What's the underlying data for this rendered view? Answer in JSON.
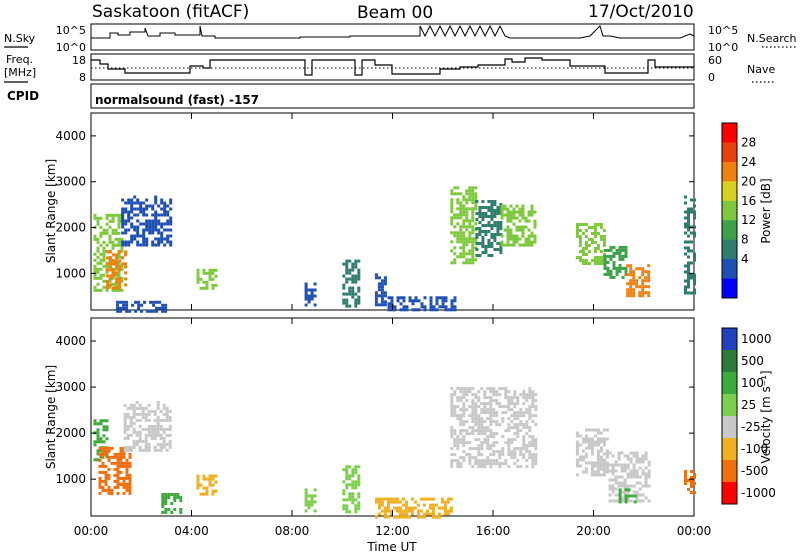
{
  "header": {
    "station": "Saskatoon (fitACF)",
    "beam": "Beam 00",
    "date": "17/Oct/2010"
  },
  "strip_nsky": {
    "left_label": "N.Sky",
    "right_label": "N.Search",
    "ticks_left": [
      "10^5",
      "10^0"
    ],
    "ticks_right": [
      "10^5",
      "10^0"
    ]
  },
  "strip_freq": {
    "left_label_1": "Freq.",
    "left_label_2": "[MHz]",
    "right_label": "Nave",
    "ticks_left": [
      "18",
      "8"
    ],
    "ticks_right": [
      "60",
      "0"
    ]
  },
  "strip_cpid": {
    "left_label": "CPID",
    "text": "normalsound (fast) -157"
  },
  "chart_data": [
    {
      "type": "heatmap",
      "panel": "power",
      "ylabel": "Slant Range [km]",
      "xlabel": "",
      "ylim": [
        200,
        4500
      ],
      "yticks": [
        "1000",
        "2000",
        "3000",
        "4000"
      ],
      "colorbar_label": "Power [dB]",
      "colorbar_ticks": [
        "28",
        "24",
        "20",
        "16",
        "12",
        "8",
        "4"
      ],
      "colorscale": [
        "#0000ff",
        "#1f4fb4",
        "#2e7d6e",
        "#3fa04a",
        "#7ec83c",
        "#d8d020",
        "#f08010",
        "#e84010",
        "#ff0000"
      ],
      "patches": [
        {
          "x": [
            0.1,
            1.2
          ],
          "y": [
            600,
            2300
          ],
          "value": 14
        },
        {
          "x": [
            0.6,
            1.4
          ],
          "y": [
            700,
            1500
          ],
          "value": 22
        },
        {
          "x": [
            1.2,
            3.2
          ],
          "y": [
            1600,
            2700
          ],
          "value": 6
        },
        {
          "x": [
            1.0,
            3.0
          ],
          "y": [
            200,
            400
          ],
          "value": 6
        },
        {
          "x": [
            4.2,
            5.0
          ],
          "y": [
            700,
            1100
          ],
          "value": 14
        },
        {
          "x": [
            8.5,
            8.9
          ],
          "y": [
            300,
            800
          ],
          "value": 6
        },
        {
          "x": [
            10.0,
            10.6
          ],
          "y": [
            300,
            1300
          ],
          "value": 8
        },
        {
          "x": [
            11.3,
            11.7
          ],
          "y": [
            300,
            1000
          ],
          "value": 6
        },
        {
          "x": [
            11.8,
            14.5
          ],
          "y": [
            200,
            500
          ],
          "value": 4
        },
        {
          "x": [
            14.3,
            15.3
          ],
          "y": [
            1200,
            2900
          ],
          "value": 16
        },
        {
          "x": [
            15.3,
            16.3
          ],
          "y": [
            1400,
            2600
          ],
          "value": 10
        },
        {
          "x": [
            16.3,
            17.7
          ],
          "y": [
            1600,
            2500
          ],
          "value": 16
        },
        {
          "x": [
            19.3,
            20.4
          ],
          "y": [
            1200,
            2100
          ],
          "value": 14
        },
        {
          "x": [
            20.4,
            21.3
          ],
          "y": [
            900,
            1600
          ],
          "value": 12
        },
        {
          "x": [
            21.3,
            22.2
          ],
          "y": [
            500,
            1200
          ],
          "value": 24
        },
        {
          "x": [
            23.6,
            24.0
          ],
          "y": [
            600,
            2700
          ],
          "value": 8
        }
      ]
    },
    {
      "type": "heatmap",
      "panel": "velocity",
      "ylabel": "Slant Range [km]",
      "xlabel": "Time UT",
      "xlim": [
        0,
        24
      ],
      "xticks": [
        "00:00",
        "04:00",
        "08:00",
        "12:00",
        "16:00",
        "20:00",
        "00:00"
      ],
      "ylim": [
        200,
        4500
      ],
      "yticks": [
        "1000",
        "2000",
        "3000",
        "4000"
      ],
      "colorbar_label": "Velocity [m s⁻¹]",
      "colorbar_ticks": [
        "1000",
        "500",
        "100",
        "25",
        "-25",
        "-100",
        "-500",
        "-1000"
      ],
      "colorscale": [
        "#2040c0",
        "#2d7a3a",
        "#3caa3c",
        "#7ccf4c",
        "#c8c8c8",
        "#f0b020",
        "#f07010",
        "#ff0000"
      ],
      "patches": [
        {
          "x": [
            0.1,
            0.6
          ],
          "y": [
            1400,
            2300
          ],
          "value": 100
        },
        {
          "x": [
            0.3,
            1.5
          ],
          "y": [
            700,
            1700
          ],
          "value": -300
        },
        {
          "x": [
            1.3,
            3.2
          ],
          "y": [
            1600,
            2700
          ],
          "value": 0
        },
        {
          "x": [
            2.8,
            3.6
          ],
          "y": [
            300,
            700
          ],
          "value": 150
        },
        {
          "x": [
            4.2,
            5.0
          ],
          "y": [
            700,
            1100
          ],
          "value": -100
        },
        {
          "x": [
            8.5,
            8.9
          ],
          "y": [
            300,
            800
          ],
          "value": 50
        },
        {
          "x": [
            10.0,
            10.6
          ],
          "y": [
            300,
            1300
          ],
          "value": 50
        },
        {
          "x": [
            11.3,
            14.4
          ],
          "y": [
            200,
            600
          ],
          "value": -60
        },
        {
          "x": [
            14.3,
            17.7
          ],
          "y": [
            1300,
            3000
          ],
          "value": 0
        },
        {
          "x": [
            19.3,
            20.6
          ],
          "y": [
            1100,
            2100
          ],
          "value": 0
        },
        {
          "x": [
            20.6,
            22.2
          ],
          "y": [
            500,
            1600
          ],
          "value": 0
        },
        {
          "x": [
            21.0,
            21.6
          ],
          "y": [
            500,
            800
          ],
          "value": 100
        },
        {
          "x": [
            23.6,
            24.0
          ],
          "y": [
            700,
            1200
          ],
          "value": -300
        }
      ]
    }
  ]
}
